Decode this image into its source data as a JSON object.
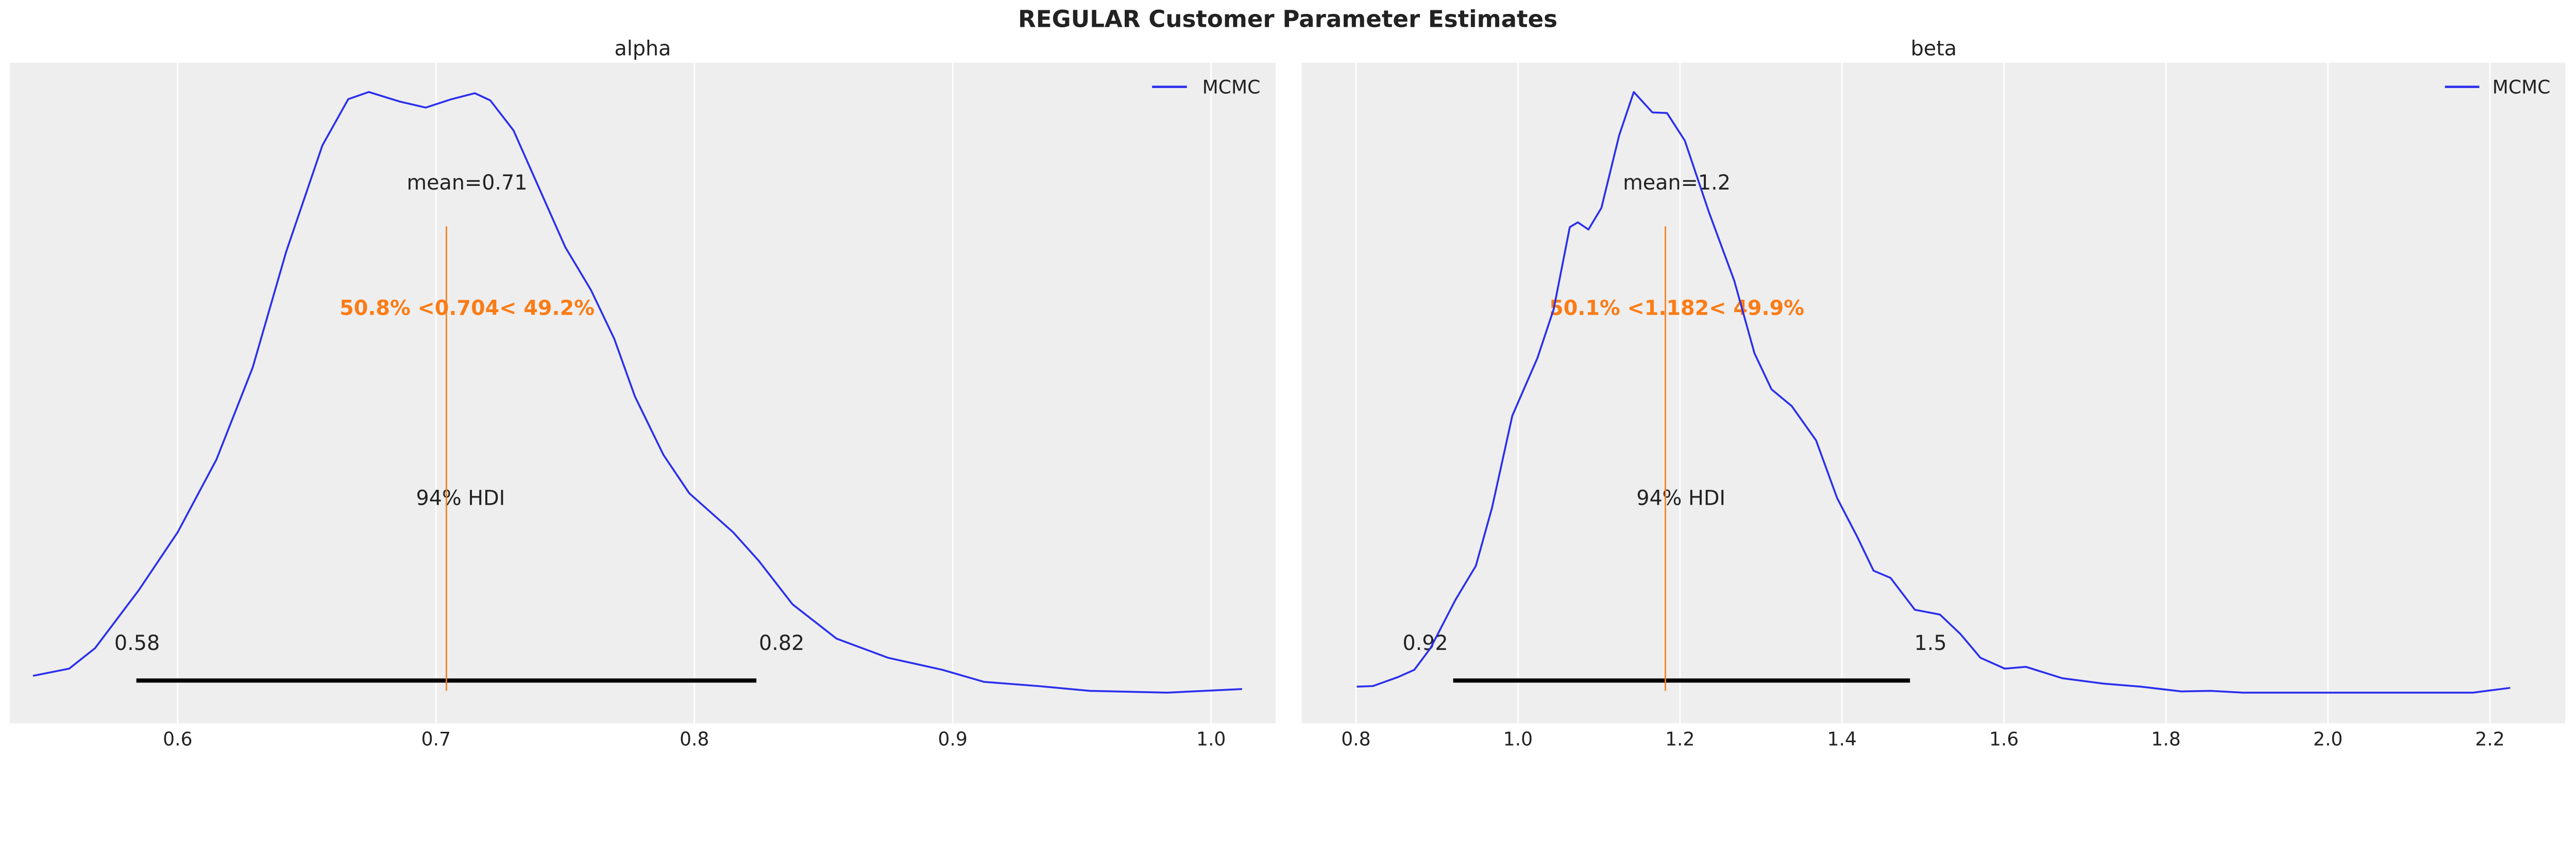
{
  "chart_data": {
    "title": "REGULAR Customer Parameter Estimates",
    "colors": {
      "density": "#2a2eec",
      "reference": "#fa7c17",
      "hdi": "#000000",
      "background": "#eeeeee",
      "grid": "#ffffff"
    },
    "grid": true,
    "legend_placement": "top-right",
    "panels": [
      {
        "type": "line",
        "title": "alpha",
        "series_name": "MCMC",
        "xlim": [
          0.535,
          1.025
        ],
        "xticks": [
          0.6,
          0.7,
          0.8,
          0.9,
          1.0
        ],
        "xtick_labels": [
          "0.6",
          "0.7",
          "0.8",
          "0.9",
          "1.0"
        ],
        "mean_label": "mean=0.71",
        "reference_value": 0.704,
        "reference_label": "50.8% <0.704< 49.2%",
        "hdi_label": "94% HDI",
        "hdi": [
          0.584,
          0.824
        ],
        "hdi_labels": [
          "0.58",
          "0.82"
        ],
        "density_x": [
          0.544,
          0.558,
          0.568,
          0.585,
          0.6,
          0.615,
          0.629,
          0.642,
          0.656,
          0.666,
          0.674,
          0.686,
          0.696,
          0.706,
          0.715,
          0.721,
          0.73,
          0.74,
          0.75,
          0.76,
          0.769,
          0.777,
          0.788,
          0.798,
          0.815,
          0.825,
          0.838,
          0.855,
          0.875,
          0.896,
          0.912,
          0.933,
          0.953,
          0.983,
          1.012
        ],
        "density_rel": [
          0.028,
          0.04,
          0.074,
          0.171,
          0.267,
          0.388,
          0.541,
          0.734,
          0.911,
          0.988,
          1.0,
          0.984,
          0.974,
          0.988,
          0.998,
          0.986,
          0.936,
          0.839,
          0.742,
          0.67,
          0.589,
          0.493,
          0.396,
          0.332,
          0.267,
          0.219,
          0.147,
          0.09,
          0.058,
          0.038,
          0.018,
          0.011,
          0.003,
          0.0,
          0.006
        ]
      },
      {
        "type": "line",
        "title": "beta",
        "series_name": "MCMC",
        "xlim": [
          0.733,
          2.293
        ],
        "xticks": [
          0.8,
          1.0,
          1.2,
          1.4,
          1.6,
          1.8,
          2.0,
          2.2
        ],
        "xtick_labels": [
          "0.8",
          "1.0",
          "1.2",
          "1.4",
          "1.6",
          "1.8",
          "2.0",
          "2.2"
        ],
        "mean_label": "mean=1.2",
        "reference_value": 1.182,
        "reference_label": "50.1% <1.182< 49.9%",
        "hdi_label": "94% HDI",
        "hdi": [
          0.92,
          1.484
        ],
        "hdi_labels": [
          "0.92",
          "1.5"
        ],
        "density_x": [
          0.801,
          0.821,
          0.852,
          0.872,
          0.892,
          0.923,
          0.948,
          0.968,
          0.993,
          1.024,
          1.044,
          1.064,
          1.074,
          1.087,
          1.103,
          1.125,
          1.143,
          1.166,
          1.184,
          1.206,
          1.236,
          1.267,
          1.292,
          1.313,
          1.338,
          1.368,
          1.394,
          1.419,
          1.439,
          1.46,
          1.49,
          1.521,
          1.546,
          1.571,
          1.601,
          1.627,
          1.672,
          1.723,
          1.769,
          1.819,
          1.855,
          1.895,
          2.179,
          2.225
        ],
        "density_rel": [
          0.01,
          0.011,
          0.026,
          0.038,
          0.074,
          0.155,
          0.211,
          0.308,
          0.461,
          0.557,
          0.638,
          0.775,
          0.783,
          0.771,
          0.807,
          0.928,
          1.0,
          0.966,
          0.965,
          0.919,
          0.799,
          0.686,
          0.565,
          0.505,
          0.477,
          0.42,
          0.324,
          0.259,
          0.203,
          0.191,
          0.138,
          0.13,
          0.098,
          0.058,
          0.04,
          0.043,
          0.024,
          0.015,
          0.01,
          0.002,
          0.003,
          0.0,
          0.0,
          0.008
        ]
      }
    ]
  }
}
